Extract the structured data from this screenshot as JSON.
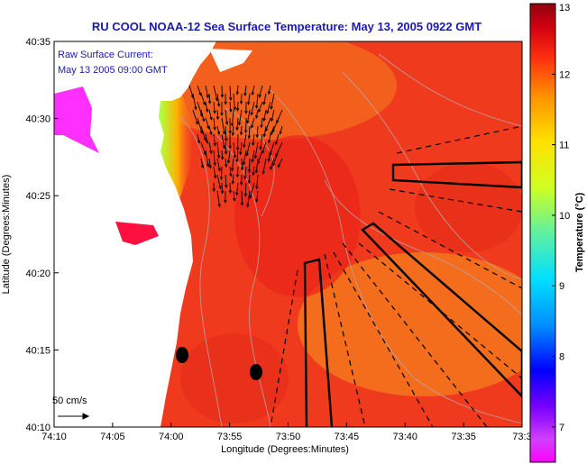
{
  "title": "RU COOL  NOAA-12  Sea Surface Temperature:  May 13, 2005 0922 GMT",
  "legend": {
    "current_line1": "Raw Surface Current:",
    "current_line2": "May 13 2005 09:00 GMT",
    "scale_label": "50 cm/s"
  },
  "axes": {
    "xlabel": "Longitude (Degrees:Minutes)",
    "ylabel": "Latitude (Degrees:Minutes)",
    "x_ticks": [
      "74:10",
      "74:05",
      "74:00",
      "73:55",
      "73:50",
      "73:45",
      "73:40",
      "73:35",
      "73:3"
    ],
    "y_ticks": [
      "40:35",
      "40:30",
      "40:25",
      "40:20",
      "40:15",
      "40:10"
    ]
  },
  "colorbar": {
    "label": "Temperature (°C)",
    "ticks": [
      "13",
      "12",
      "11",
      "10",
      "9",
      "8",
      "7"
    ],
    "range": [
      6.5,
      13
    ]
  },
  "colors": {
    "title": "#1a1ab4",
    "ocean": "#f03a1e",
    "land": "#ffffff"
  }
}
